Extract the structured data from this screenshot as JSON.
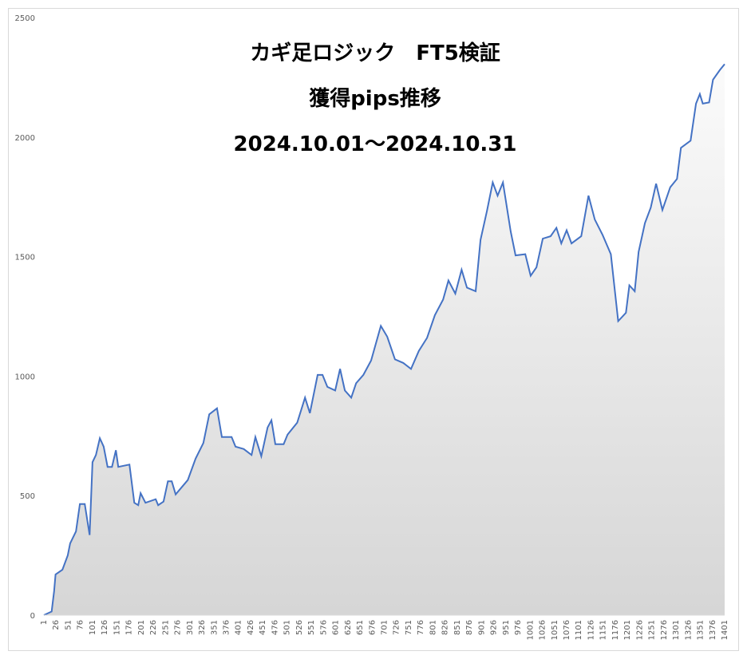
{
  "chart_data": {
    "type": "area",
    "title_lines": [
      "カギ足ロジック　FT5検証",
      "獲得pips推移",
      "2024.10.01～2024.10.31"
    ],
    "color": "#4472c4",
    "x": [
      1,
      17,
      22,
      25,
      39,
      50,
      55,
      67,
      75,
      85,
      95,
      101,
      108,
      116,
      124,
      132,
      141,
      149,
      154,
      177,
      187,
      195,
      200,
      210,
      231,
      236,
      247,
      256,
      264,
      272,
      297,
      313,
      329,
      341,
      357,
      367,
      387,
      395,
      412,
      428,
      436,
      448,
      461,
      469,
      477,
      494,
      502,
      522,
      538,
      548,
      564,
      574,
      584,
      600,
      610,
      620,
      633,
      643,
      658,
      674,
      694,
      707,
      723,
      740,
      756,
      772,
      789,
      805,
      822,
      833,
      847,
      860,
      871,
      889,
      899,
      912,
      924,
      934,
      945,
      961,
      971,
      991,
      1002,
      1014,
      1027,
      1043,
      1055,
      1065,
      1076,
      1086,
      1106,
      1121,
      1134,
      1150,
      1167,
      1182,
      1198,
      1205,
      1216,
      1224,
      1237,
      1249,
      1260,
      1273,
      1289,
      1303,
      1311,
      1331,
      1342,
      1350,
      1356,
      1369,
      1377,
      1391,
      1401
    ],
    "values": [
      0,
      15,
      100,
      170,
      190,
      250,
      300,
      350,
      465,
      465,
      335,
      640,
      670,
      740,
      705,
      620,
      620,
      690,
      620,
      630,
      470,
      460,
      510,
      470,
      485,
      460,
      475,
      560,
      560,
      505,
      565,
      655,
      720,
      840,
      865,
      745,
      745,
      705,
      695,
      670,
      745,
      665,
      785,
      815,
      715,
      715,
      755,
      805,
      910,
      845,
      1005,
      1005,
      955,
      940,
      1030,
      940,
      910,
      970,
      1005,
      1065,
      1210,
      1165,
      1070,
      1055,
      1030,
      1105,
      1160,
      1255,
      1320,
      1400,
      1345,
      1445,
      1370,
      1355,
      1570,
      1690,
      1810,
      1755,
      1810,
      1605,
      1505,
      1510,
      1420,
      1455,
      1575,
      1585,
      1620,
      1555,
      1610,
      1555,
      1585,
      1755,
      1655,
      1590,
      1510,
      1230,
      1265,
      1380,
      1355,
      1520,
      1640,
      1705,
      1805,
      1695,
      1790,
      1825,
      1955,
      1985,
      2140,
      2180,
      2140,
      2145,
      2240,
      2280,
      2305
    ],
    "xlim": [
      1,
      1401
    ],
    "xticks": [
      1,
      26,
      51,
      76,
      101,
      126,
      151,
      176,
      201,
      226,
      251,
      276,
      301,
      326,
      351,
      376,
      401,
      426,
      451,
      476,
      501,
      526,
      551,
      576,
      601,
      626,
      651,
      676,
      701,
      726,
      751,
      776,
      801,
      826,
      851,
      876,
      901,
      926,
      951,
      976,
      1001,
      1026,
      1051,
      1076,
      1101,
      1126,
      1151,
      1176,
      1201,
      1226,
      1251,
      1276,
      1301,
      1326,
      1351,
      1376,
      1401
    ],
    "ylim": [
      0,
      2500
    ],
    "yticks": [
      0,
      500,
      1000,
      1500,
      2000,
      2500
    ]
  }
}
